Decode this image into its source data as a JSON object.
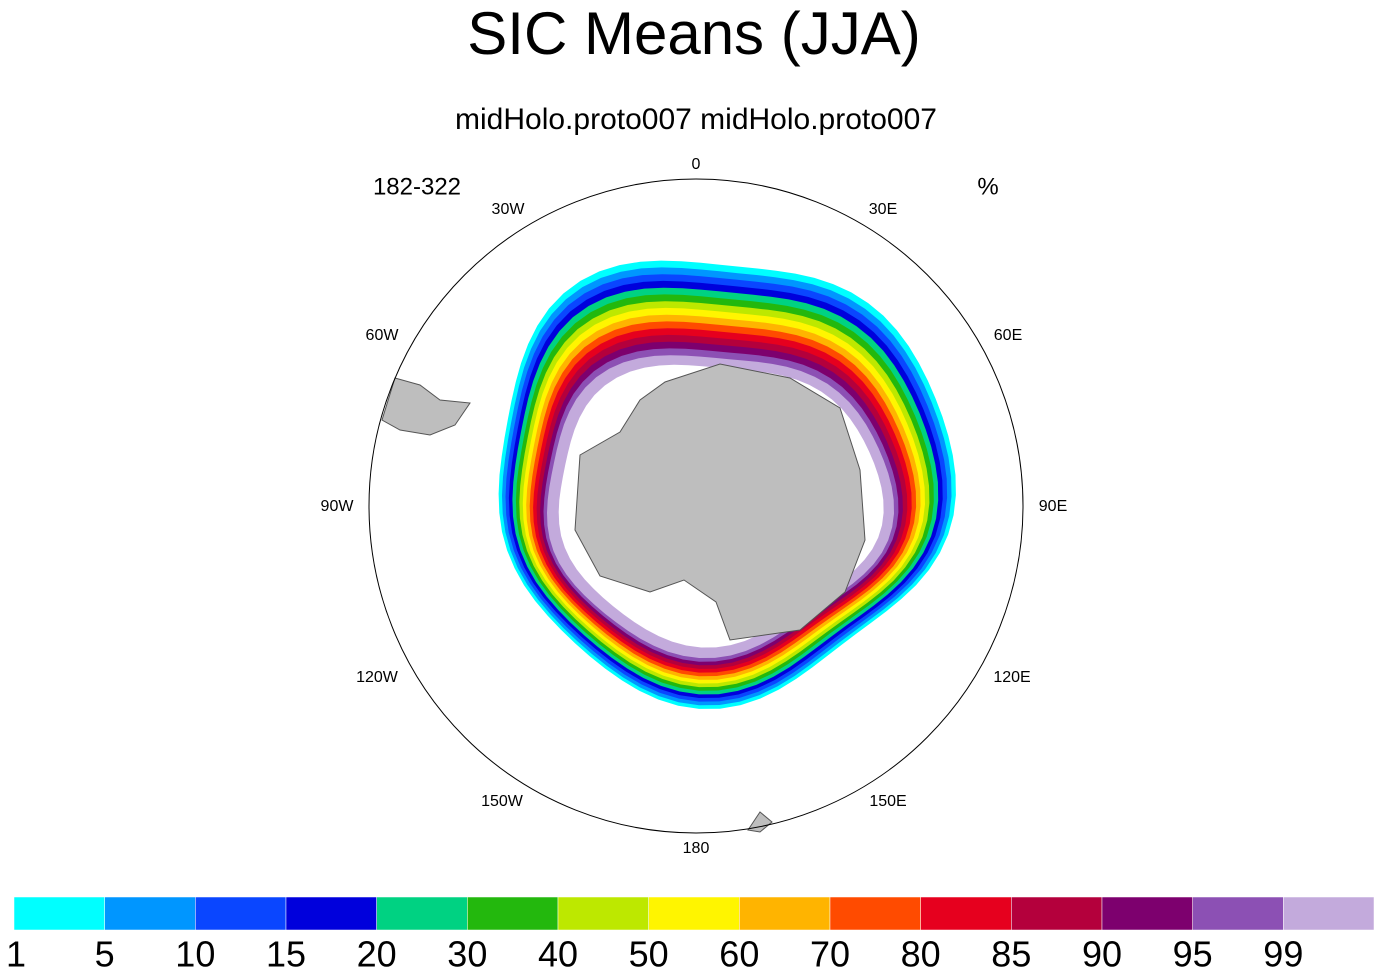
{
  "title": "SIC Means (JJA)",
  "subtitle": "midHolo.proto007  midHolo.proto007",
  "left_label": "182-322",
  "units": "%",
  "longitude_labels": [
    "0",
    "30E",
    "60E",
    "90E",
    "120E",
    "150E",
    "180",
    "150W",
    "120W",
    "90W",
    "60W",
    "30W"
  ],
  "colorbar": {
    "colors": [
      "#00ffff",
      "#0096ff",
      "#0a46ff",
      "#0000dc",
      "#00d282",
      "#23b80d",
      "#bde800",
      "#fff500",
      "#ffb400",
      "#ff4b00",
      "#e6001e",
      "#b4003c",
      "#7d006e",
      "#8c50b4",
      "#c3aadc"
    ],
    "labels": [
      1,
      5,
      10,
      15,
      20,
      30,
      40,
      50,
      60,
      70,
      80,
      85,
      90,
      95,
      99
    ]
  }
}
